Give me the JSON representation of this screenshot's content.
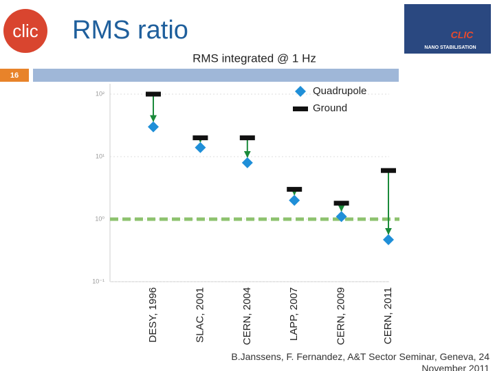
{
  "slide": {
    "title": "RMS ratio",
    "page_number": "16",
    "logo_left": "clic",
    "logo_right_title": "CLIC",
    "logo_right_subtitle": "NANO STABILISATION",
    "footer": "B.Janssens, F. Fernandez, A&T Sector Seminar, Geneva, 24 November 2011"
  },
  "chart_data": {
    "type": "scatter",
    "title": "RMS integrated @ 1 Hz",
    "categories": [
      "DESY, 1996",
      "SLAC, 2001",
      "CERN, 2004",
      "LAPP, 2007",
      "CERN, 2009",
      "CERN, 2011"
    ],
    "series": [
      {
        "name": "Quadrupole",
        "color": "#1f8fd8",
        "values": [
          30,
          14,
          8,
          2,
          1.1,
          0.47
        ]
      },
      {
        "name": "Ground",
        "color": "#111111",
        "values": [
          100,
          20,
          20,
          3,
          1.8,
          6
        ]
      }
    ],
    "arrow_color": "#1a8a3a",
    "reference_line": 1,
    "reference_color": "#8dc26e",
    "log_y": true,
    "ylim": [
      0.1,
      100
    ],
    "yticks": [
      {
        "value": 0.1,
        "label": "10⁻¹"
      },
      {
        "value": 1,
        "label": "10⁰"
      },
      {
        "value": 10,
        "label": "10¹"
      },
      {
        "value": 100,
        "label": "10²"
      }
    ],
    "grid": true,
    "legend": "upper right"
  }
}
